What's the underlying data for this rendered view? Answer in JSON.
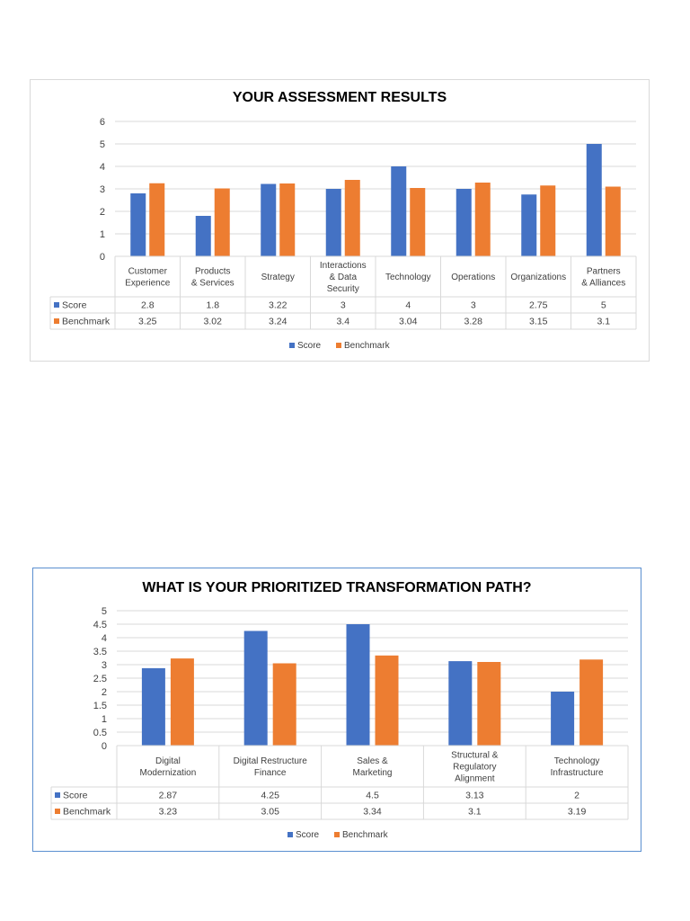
{
  "chart_data": [
    {
      "type": "bar",
      "title": "YOUR ASSESSMENT RESULTS",
      "categories": [
        [
          "Customer",
          "Experience"
        ],
        [
          "Products",
          "& Services"
        ],
        [
          "Strategy"
        ],
        [
          "Interactions",
          "& Data",
          "Security"
        ],
        [
          "Technology"
        ],
        [
          "Operations"
        ],
        [
          "Organizations"
        ],
        [
          "Partners",
          "& Alliances"
        ]
      ],
      "series": [
        {
          "name": "Score",
          "values": [
            2.8,
            1.8,
            3.22,
            3,
            4,
            3,
            2.75,
            5
          ],
          "labels": [
            "2.8",
            "1.8",
            "3.22",
            "3",
            "4",
            "3",
            "2.75",
            "5"
          ]
        },
        {
          "name": "Benchmark",
          "values": [
            3.25,
            3.02,
            3.24,
            3.4,
            3.04,
            3.28,
            3.15,
            3.1
          ],
          "labels": [
            "3.25",
            "3.02",
            "3.24",
            "3.4",
            "3.04",
            "3.28",
            "3.15",
            "3.1"
          ]
        }
      ],
      "ylim": [
        0,
        6
      ],
      "yticks": [
        "0",
        "1",
        "2",
        "3",
        "4",
        "5",
        "6"
      ],
      "ystep": 1,
      "grid": true,
      "legend": "bottom",
      "data_table": true,
      "colors": {
        "Score": "#4472c4",
        "Benchmark": "#ed7d31"
      }
    },
    {
      "type": "bar",
      "title": "WHAT IS YOUR PRIORITIZED TRANSFORMATION PATH?",
      "categories": [
        [
          "Digital",
          "Modernization"
        ],
        [
          "Digital Restructure",
          "Finance"
        ],
        [
          "Sales &",
          "Marketing"
        ],
        [
          "Structural &",
          "Regulatory",
          "Alignment"
        ],
        [
          "Technology",
          "Infrastructure"
        ]
      ],
      "series": [
        {
          "name": "Score",
          "values": [
            2.87,
            4.25,
            4.5,
            3.13,
            2
          ],
          "labels": [
            "2.87",
            "4.25",
            "4.5",
            "3.13",
            "2"
          ]
        },
        {
          "name": "Benchmark",
          "values": [
            3.23,
            3.05,
            3.34,
            3.1,
            3.19
          ],
          "labels": [
            "3.23",
            "3.05",
            "3.34",
            "3.1",
            "3.19"
          ]
        }
      ],
      "ylim": [
        0,
        5
      ],
      "yticks": [
        "0",
        "0.5",
        "1",
        "1.5",
        "2",
        "2.5",
        "3",
        "3.5",
        "4",
        "4.5",
        "5"
      ],
      "ystep": 0.5,
      "grid": true,
      "legend": "bottom",
      "data_table": true,
      "colors": {
        "Score": "#4472c4",
        "Benchmark": "#ed7d31"
      }
    }
  ]
}
